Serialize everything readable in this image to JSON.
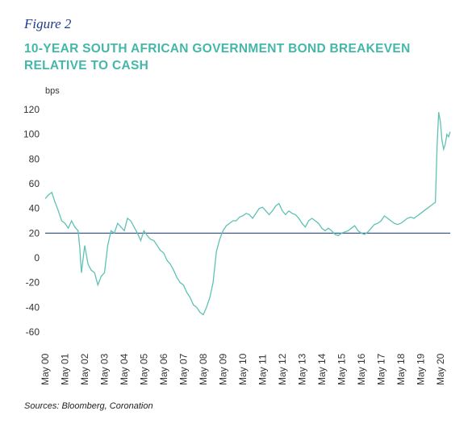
{
  "figure_label": "Figure 2",
  "source": "Sources: Bloomberg, Coronation",
  "chart_data": {
    "type": "line",
    "title": "10-YEAR SOUTH AFRICAN GOVERNMENT BOND BREAKEVEN RELATIVE TO CASH",
    "unit_label": "bps",
    "xlabel": "",
    "ylabel": "",
    "ylim": [
      -60,
      120
    ],
    "yticks": [
      120,
      100,
      80,
      60,
      40,
      20,
      0,
      -20,
      -40,
      -60
    ],
    "xlim": [
      "2000-05",
      "2020-11"
    ],
    "xticks": [
      "May 00",
      "May 01",
      "May 02",
      "May 03",
      "May 04",
      "May 05",
      "May 06",
      "May 07",
      "May 08",
      "May 09",
      "May 10",
      "May 11",
      "May 12",
      "May 13",
      "May 14",
      "May 15",
      "May 16",
      "May 17",
      "May 18",
      "May 19",
      "May 20"
    ],
    "reference_line": {
      "y": 20,
      "color": "#2f4a7a"
    },
    "line_color": "#5ec2b4",
    "grid": false,
    "legend": "none",
    "points": [
      [
        "2000-05",
        48
      ],
      [
        "2000-07",
        51
      ],
      [
        "2000-09",
        53
      ],
      [
        "2000-11",
        45
      ],
      [
        "2001-01",
        38
      ],
      [
        "2001-03",
        30
      ],
      [
        "2001-05",
        28
      ],
      [
        "2001-07",
        24
      ],
      [
        "2001-09",
        30
      ],
      [
        "2001-11",
        25
      ],
      [
        "2002-01",
        22
      ],
      [
        "2002-02",
        8
      ],
      [
        "2002-03",
        -12
      ],
      [
        "2002-05",
        10
      ],
      [
        "2002-07",
        -5
      ],
      [
        "2002-09",
        -10
      ],
      [
        "2002-11",
        -12
      ],
      [
        "2003-01",
        -22
      ],
      [
        "2003-03",
        -15
      ],
      [
        "2003-05",
        -12
      ],
      [
        "2003-07",
        10
      ],
      [
        "2003-09",
        22
      ],
      [
        "2003-11",
        20
      ],
      [
        "2004-01",
        28
      ],
      [
        "2004-03",
        25
      ],
      [
        "2004-05",
        22
      ],
      [
        "2004-07",
        32
      ],
      [
        "2004-09",
        30
      ],
      [
        "2004-11",
        25
      ],
      [
        "2005-01",
        20
      ],
      [
        "2005-03",
        14
      ],
      [
        "2005-05",
        22
      ],
      [
        "2005-07",
        18
      ],
      [
        "2005-09",
        15
      ],
      [
        "2005-11",
        14
      ],
      [
        "2006-01",
        10
      ],
      [
        "2006-03",
        6
      ],
      [
        "2006-05",
        4
      ],
      [
        "2006-07",
        -2
      ],
      [
        "2006-09",
        -5
      ],
      [
        "2006-11",
        -10
      ],
      [
        "2007-01",
        -16
      ],
      [
        "2007-03",
        -20
      ],
      [
        "2007-05",
        -22
      ],
      [
        "2007-07",
        -28
      ],
      [
        "2007-09",
        -32
      ],
      [
        "2007-11",
        -38
      ],
      [
        "2008-01",
        -40
      ],
      [
        "2008-03",
        -44
      ],
      [
        "2008-05",
        -46
      ],
      [
        "2008-07",
        -40
      ],
      [
        "2008-09",
        -32
      ],
      [
        "2008-11",
        -20
      ],
      [
        "2009-01",
        5
      ],
      [
        "2009-03",
        15
      ],
      [
        "2009-05",
        22
      ],
      [
        "2009-07",
        26
      ],
      [
        "2009-09",
        28
      ],
      [
        "2009-11",
        30
      ],
      [
        "2010-01",
        30
      ],
      [
        "2010-03",
        33
      ],
      [
        "2010-05",
        34
      ],
      [
        "2010-07",
        36
      ],
      [
        "2010-09",
        35
      ],
      [
        "2010-11",
        32
      ],
      [
        "2011-01",
        36
      ],
      [
        "2011-03",
        40
      ],
      [
        "2011-05",
        41
      ],
      [
        "2011-07",
        38
      ],
      [
        "2011-09",
        35
      ],
      [
        "2011-11",
        38
      ],
      [
        "2012-01",
        42
      ],
      [
        "2012-03",
        44
      ],
      [
        "2012-05",
        38
      ],
      [
        "2012-07",
        35
      ],
      [
        "2012-09",
        38
      ],
      [
        "2012-11",
        36
      ],
      [
        "2013-01",
        35
      ],
      [
        "2013-03",
        32
      ],
      [
        "2013-05",
        28
      ],
      [
        "2013-07",
        25
      ],
      [
        "2013-09",
        30
      ],
      [
        "2013-11",
        32
      ],
      [
        "2014-01",
        30
      ],
      [
        "2014-03",
        28
      ],
      [
        "2014-05",
        24
      ],
      [
        "2014-07",
        22
      ],
      [
        "2014-09",
        24
      ],
      [
        "2014-11",
        22
      ],
      [
        "2015-01",
        19
      ],
      [
        "2015-03",
        18
      ],
      [
        "2015-05",
        20
      ],
      [
        "2015-07",
        21
      ],
      [
        "2015-09",
        22
      ],
      [
        "2015-11",
        24
      ],
      [
        "2016-01",
        26
      ],
      [
        "2016-03",
        22
      ],
      [
        "2016-05",
        20
      ],
      [
        "2016-07",
        19
      ],
      [
        "2016-09",
        21
      ],
      [
        "2016-11",
        24
      ],
      [
        "2017-01",
        27
      ],
      [
        "2017-03",
        28
      ],
      [
        "2017-05",
        30
      ],
      [
        "2017-07",
        34
      ],
      [
        "2017-09",
        32
      ],
      [
        "2017-11",
        30
      ],
      [
        "2018-01",
        28
      ],
      [
        "2018-03",
        27
      ],
      [
        "2018-05",
        28
      ],
      [
        "2018-07",
        30
      ],
      [
        "2018-09",
        32
      ],
      [
        "2018-11",
        33
      ],
      [
        "2019-01",
        32
      ],
      [
        "2019-03",
        34
      ],
      [
        "2019-05",
        36
      ],
      [
        "2019-07",
        38
      ],
      [
        "2019-09",
        40
      ],
      [
        "2019-11",
        42
      ],
      [
        "2020-01",
        44
      ],
      [
        "2020-02",
        45
      ],
      [
        "2020-03",
        90
      ],
      [
        "2020-04",
        118
      ],
      [
        "2020-05",
        110
      ],
      [
        "2020-06",
        95
      ],
      [
        "2020-07",
        88
      ],
      [
        "2020-08",
        92
      ],
      [
        "2020-09",
        100
      ],
      [
        "2020-10",
        98
      ],
      [
        "2020-11",
        102
      ]
    ]
  }
}
